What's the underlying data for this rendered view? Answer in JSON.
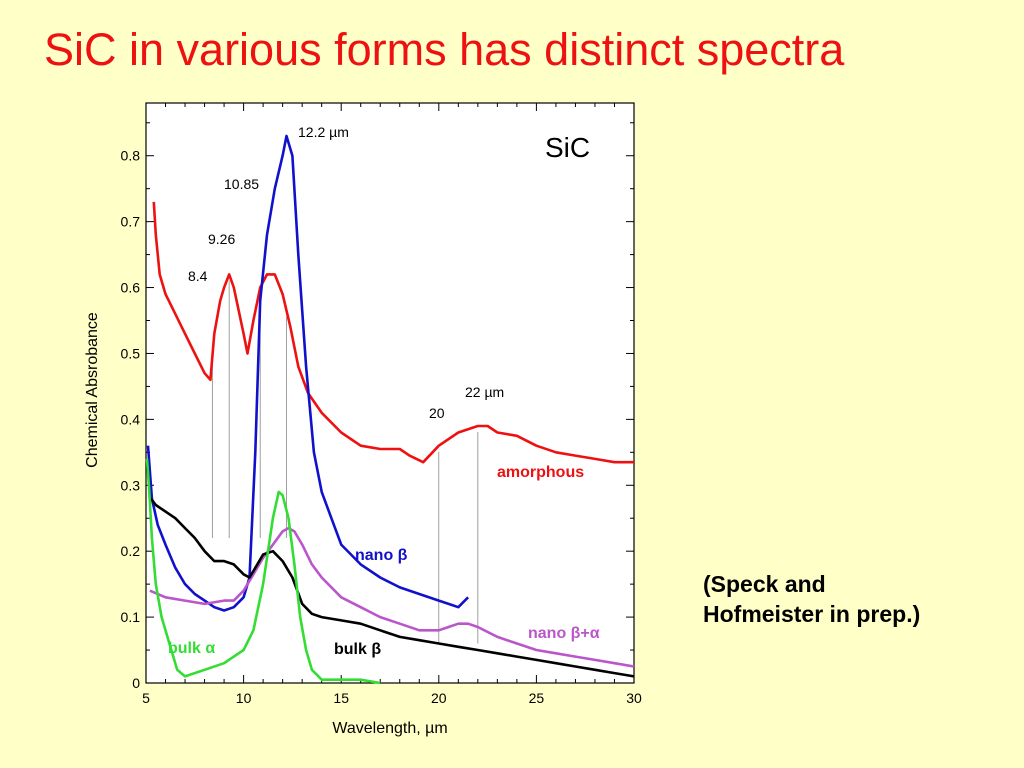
{
  "slide": {
    "title": "SiC in various forms has distinct spectra",
    "citation_line1": "(Speck and",
    "citation_line2": "Hofmeister in prep.)"
  },
  "chart_data": {
    "type": "line",
    "title": "SiC",
    "xlabel": "Wavelength, µm",
    "ylabel": "Chemical Absrobance",
    "xlim": [
      5,
      30
    ],
    "ylim": [
      0,
      0.88
    ],
    "xticks": [
      5,
      10,
      15,
      20,
      25,
      30
    ],
    "xtick_labels": [
      "5",
      "10",
      "15",
      "20",
      "25",
      "30"
    ],
    "yticks": [
      0,
      0.1,
      0.2,
      0.3,
      0.4,
      0.5,
      0.6,
      0.7,
      0.8
    ],
    "ytick_labels": [
      "0",
      "0.1",
      "0.2",
      "0.3",
      "0.4",
      "0.5",
      "0.6",
      "0.7",
      "0.8"
    ],
    "grid": false,
    "series": [
      {
        "name": "amorphous",
        "color": "#ee1111",
        "points": [
          [
            5.4,
            0.73
          ],
          [
            5.5,
            0.68
          ],
          [
            5.7,
            0.62
          ],
          [
            6.0,
            0.59
          ],
          [
            6.5,
            0.56
          ],
          [
            7.0,
            0.53
          ],
          [
            7.5,
            0.5
          ],
          [
            8.0,
            0.47
          ],
          [
            8.3,
            0.46
          ],
          [
            8.5,
            0.53
          ],
          [
            8.8,
            0.58
          ],
          [
            9.0,
            0.6
          ],
          [
            9.26,
            0.62
          ],
          [
            9.5,
            0.6
          ],
          [
            10.0,
            0.53
          ],
          [
            10.2,
            0.5
          ],
          [
            10.5,
            0.55
          ],
          [
            10.85,
            0.6
          ],
          [
            11.2,
            0.62
          ],
          [
            11.6,
            0.62
          ],
          [
            12.0,
            0.59
          ],
          [
            12.4,
            0.54
          ],
          [
            12.8,
            0.48
          ],
          [
            13.3,
            0.44
          ],
          [
            14.0,
            0.41
          ],
          [
            15.0,
            0.38
          ],
          [
            16.0,
            0.36
          ],
          [
            17.0,
            0.355
          ],
          [
            18.0,
            0.355
          ],
          [
            18.5,
            0.345
          ],
          [
            19.2,
            0.335
          ],
          [
            20.0,
            0.36
          ],
          [
            21.0,
            0.38
          ],
          [
            22.0,
            0.39
          ],
          [
            22.5,
            0.39
          ],
          [
            23.0,
            0.38
          ],
          [
            24.0,
            0.375
          ],
          [
            25.0,
            0.36
          ],
          [
            26.0,
            0.35
          ],
          [
            27.0,
            0.345
          ],
          [
            28.0,
            0.34
          ],
          [
            29.0,
            0.335
          ],
          [
            30.0,
            0.335
          ]
        ]
      },
      {
        "name": "nano β",
        "color": "#1111cc",
        "points": [
          [
            5.1,
            0.36
          ],
          [
            5.3,
            0.28
          ],
          [
            5.6,
            0.24
          ],
          [
            6.0,
            0.21
          ],
          [
            6.5,
            0.175
          ],
          [
            7.0,
            0.15
          ],
          [
            7.5,
            0.135
          ],
          [
            8.0,
            0.125
          ],
          [
            8.5,
            0.115
          ],
          [
            9.0,
            0.11
          ],
          [
            9.5,
            0.115
          ],
          [
            10.0,
            0.13
          ],
          [
            10.3,
            0.16
          ],
          [
            10.6,
            0.35
          ],
          [
            10.85,
            0.58
          ],
          [
            11.2,
            0.68
          ],
          [
            11.6,
            0.75
          ],
          [
            12.0,
            0.8
          ],
          [
            12.2,
            0.83
          ],
          [
            12.5,
            0.8
          ],
          [
            12.8,
            0.65
          ],
          [
            13.2,
            0.48
          ],
          [
            13.6,
            0.35
          ],
          [
            14.0,
            0.29
          ],
          [
            14.5,
            0.25
          ],
          [
            15.0,
            0.21
          ],
          [
            16.0,
            0.18
          ],
          [
            17.0,
            0.16
          ],
          [
            18.0,
            0.145
          ],
          [
            19.0,
            0.135
          ],
          [
            20.0,
            0.125
          ],
          [
            20.5,
            0.12
          ],
          [
            21.0,
            0.115
          ],
          [
            21.5,
            0.13
          ]
        ]
      },
      {
        "name": "nano β+α",
        "color": "#bb55cc",
        "points": [
          [
            5.2,
            0.14
          ],
          [
            6.0,
            0.13
          ],
          [
            7.0,
            0.125
          ],
          [
            8.0,
            0.12
          ],
          [
            9.0,
            0.125
          ],
          [
            9.5,
            0.125
          ],
          [
            10.0,
            0.14
          ],
          [
            10.5,
            0.165
          ],
          [
            11.0,
            0.19
          ],
          [
            11.5,
            0.21
          ],
          [
            12.0,
            0.23
          ],
          [
            12.3,
            0.235
          ],
          [
            12.6,
            0.23
          ],
          [
            13.0,
            0.21
          ],
          [
            13.5,
            0.18
          ],
          [
            14.0,
            0.16
          ],
          [
            15.0,
            0.13
          ],
          [
            16.0,
            0.115
          ],
          [
            17.0,
            0.1
          ],
          [
            18.0,
            0.09
          ],
          [
            19.0,
            0.08
          ],
          [
            20.0,
            0.08
          ],
          [
            20.5,
            0.085
          ],
          [
            21.0,
            0.09
          ],
          [
            21.5,
            0.09
          ],
          [
            22.0,
            0.085
          ],
          [
            23.0,
            0.07
          ],
          [
            24.0,
            0.06
          ],
          [
            25.0,
            0.05
          ],
          [
            26.0,
            0.045
          ],
          [
            27.0,
            0.04
          ],
          [
            28.0,
            0.035
          ],
          [
            29.0,
            0.03
          ],
          [
            30.0,
            0.025
          ]
        ]
      },
      {
        "name": "bulk β",
        "color": "#000000",
        "points": [
          [
            5.25,
            0.28
          ],
          [
            5.5,
            0.27
          ],
          [
            6.0,
            0.26
          ],
          [
            6.5,
            0.25
          ],
          [
            7.0,
            0.235
          ],
          [
            7.5,
            0.22
          ],
          [
            8.0,
            0.2
          ],
          [
            8.5,
            0.185
          ],
          [
            9.0,
            0.185
          ],
          [
            9.5,
            0.18
          ],
          [
            10.0,
            0.165
          ],
          [
            10.3,
            0.16
          ],
          [
            10.7,
            0.18
          ],
          [
            11.0,
            0.195
          ],
          [
            11.5,
            0.2
          ],
          [
            12.0,
            0.185
          ],
          [
            12.5,
            0.16
          ],
          [
            13.0,
            0.12
          ],
          [
            13.5,
            0.105
          ],
          [
            14.0,
            0.1
          ],
          [
            15.0,
            0.095
          ],
          [
            16.0,
            0.09
          ],
          [
            17.0,
            0.08
          ],
          [
            18.0,
            0.07
          ],
          [
            19.0,
            0.065
          ],
          [
            20.0,
            0.06
          ],
          [
            21.0,
            0.055
          ],
          [
            22.0,
            0.05
          ],
          [
            23.0,
            0.045
          ],
          [
            24.0,
            0.04
          ],
          [
            25.0,
            0.035
          ],
          [
            26.0,
            0.03
          ],
          [
            27.0,
            0.025
          ],
          [
            28.0,
            0.02
          ],
          [
            29.0,
            0.015
          ],
          [
            30.0,
            0.01
          ]
        ]
      },
      {
        "name": "bulk α",
        "color": "#33dd33",
        "points": [
          [
            5.05,
            0.34
          ],
          [
            5.15,
            0.3
          ],
          [
            5.3,
            0.22
          ],
          [
            5.5,
            0.15
          ],
          [
            5.8,
            0.1
          ],
          [
            6.2,
            0.06
          ],
          [
            6.6,
            0.02
          ],
          [
            7.0,
            0.01
          ],
          [
            8.0,
            0.02
          ],
          [
            9.0,
            0.03
          ],
          [
            9.5,
            0.04
          ],
          [
            10.0,
            0.05
          ],
          [
            10.5,
            0.08
          ],
          [
            11.0,
            0.15
          ],
          [
            11.5,
            0.25
          ],
          [
            11.8,
            0.29
          ],
          [
            12.0,
            0.285
          ],
          [
            12.3,
            0.25
          ],
          [
            12.6,
            0.18
          ],
          [
            12.9,
            0.1
          ],
          [
            13.2,
            0.05
          ],
          [
            13.5,
            0.02
          ],
          [
            14.0,
            0.005
          ],
          [
            15.0,
            0.005
          ],
          [
            16.0,
            0.005
          ],
          [
            17.0,
            0.0
          ]
        ]
      }
    ],
    "annotations": {
      "peaks_amorphous": [
        {
          "text": "8.4",
          "x": 8.4
        },
        {
          "text": "9.26",
          "x": 9.26
        },
        {
          "text": "10.85",
          "x": 10.85
        },
        {
          "text": "12.2 µm",
          "x": 12.2
        },
        {
          "text": "20",
          "x": 20
        },
        {
          "text": "22 µm",
          "x": 22
        }
      ],
      "series_labels": [
        "amorphous",
        "nano β",
        "nano β+α",
        "bulk β",
        "bulk α"
      ]
    }
  }
}
